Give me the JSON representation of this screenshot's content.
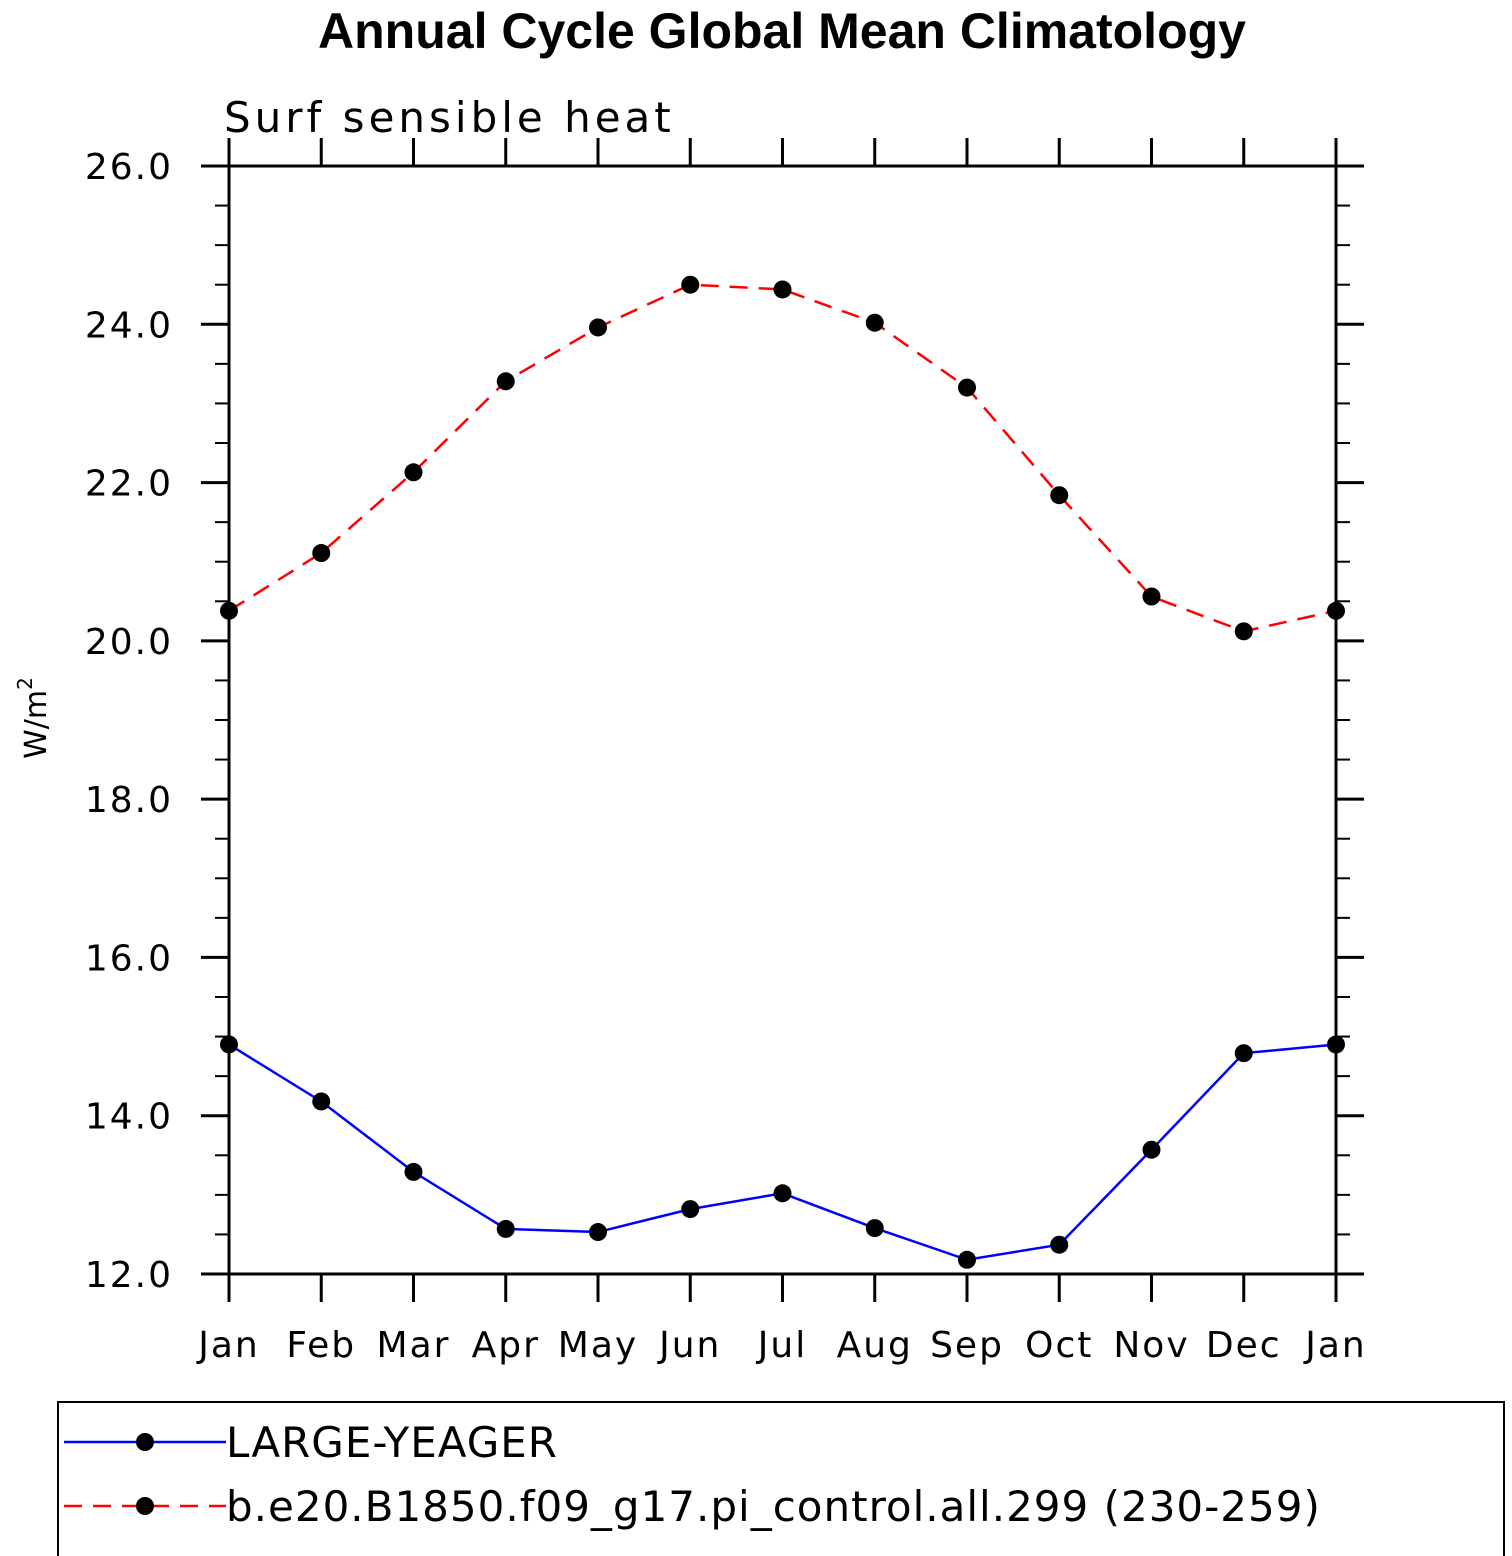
{
  "chart_data": {
    "type": "line",
    "title": "Annual Cycle Global Mean Climatology",
    "subtitle": "Surf sensible heat",
    "ylabel": "W/m",
    "ylabel_superscript": "2",
    "xlabel": "",
    "categories": [
      "Jan",
      "Feb",
      "Mar",
      "Apr",
      "May",
      "Jun",
      "Jul",
      "Aug",
      "Sep",
      "Oct",
      "Nov",
      "Dec",
      "Jan"
    ],
    "ylim": [
      12.0,
      26.0
    ],
    "yticks": [
      "12.0",
      "14.0",
      "16.0",
      "18.0",
      "20.0",
      "22.0",
      "24.0",
      "26.0"
    ],
    "y_minor_step": 0.5,
    "series": [
      {
        "name": "LARGE-YEAGER",
        "color": "#0000ff",
        "dash": "solid",
        "marker": "filled-circle",
        "values": [
          14.9,
          14.18,
          13.29,
          12.57,
          12.53,
          12.82,
          13.02,
          12.58,
          12.18,
          12.37,
          13.57,
          14.79,
          14.9
        ]
      },
      {
        "name": "b.e20.B1850.f09_g17.pi_control.all.299 (230-259)",
        "color": "#ff0000",
        "dash": "dashed",
        "marker": "filled-circle",
        "values": [
          20.38,
          21.11,
          22.13,
          23.28,
          23.96,
          24.5,
          24.44,
          24.02,
          23.2,
          21.84,
          20.56,
          20.12,
          20.38
        ]
      }
    ],
    "grid": false,
    "legend_position": "bottom"
  }
}
